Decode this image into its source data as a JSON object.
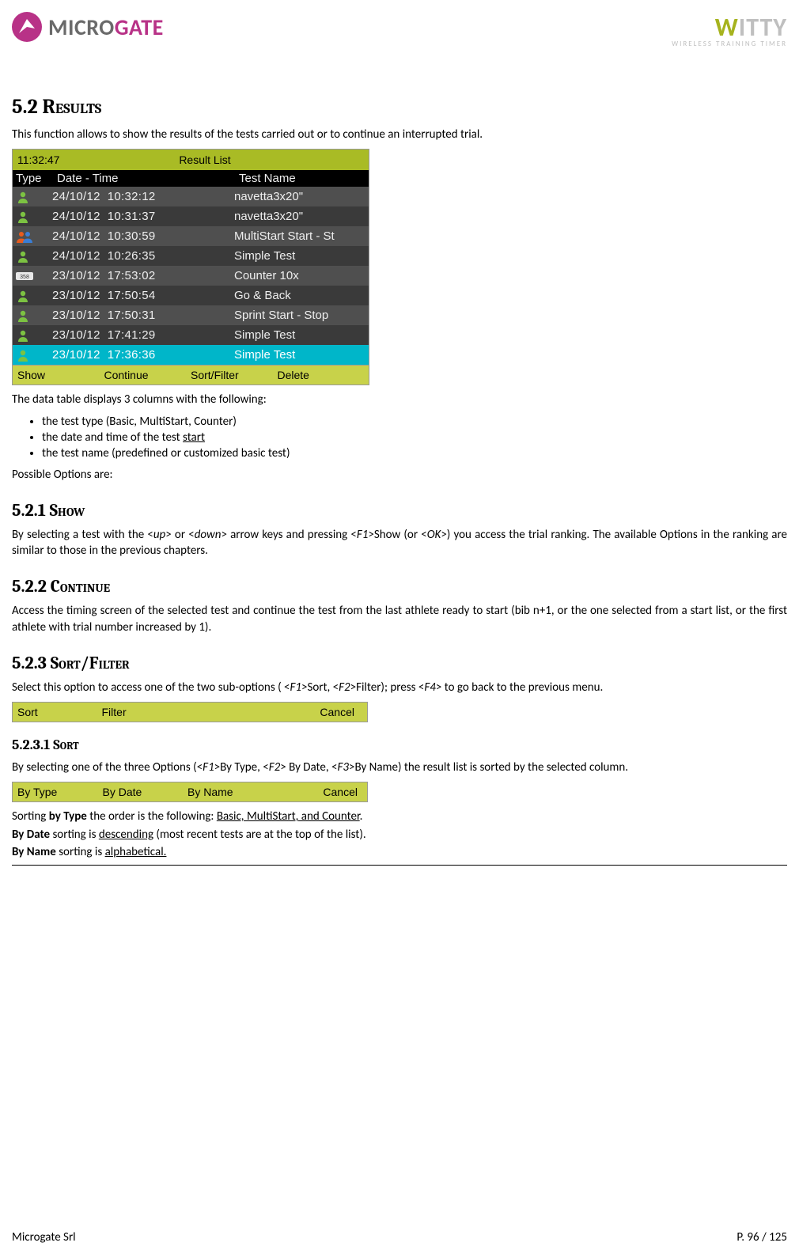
{
  "header": {
    "brand_left_a": "MICRO",
    "brand_left_b": "GATE",
    "brand_right_a": "W",
    "brand_right_b": "ITTY",
    "brand_right_sub": "WIRELESS TRAINING TIMER"
  },
  "sec52": {
    "num": "5.2 ",
    "title": "Results",
    "intro": "This function allows to show the results of the tests carried out or to continue an interrupted trial."
  },
  "device": {
    "time": "11:32:47",
    "title": "Result  List",
    "col_type": "Type",
    "col_dt": "Date - Time",
    "col_name": "Test  Name",
    "rows": [
      {
        "icon": "person",
        "dt": "24/10/12  10:32:12",
        "name": "navetta3x20\""
      },
      {
        "icon": "person",
        "dt": "24/10/12  10:31:37",
        "name": "navetta3x20\""
      },
      {
        "icon": "group",
        "dt": "24/10/12  10:30:59",
        "name": "MultiStart  Start - St"
      },
      {
        "icon": "person",
        "dt": "24/10/12  10:26:35",
        "name": "Simple  Test"
      },
      {
        "icon": "counter",
        "dt": "23/10/12  17:53:02",
        "name": "Counter  10x"
      },
      {
        "icon": "person",
        "dt": "23/10/12  17:50:54",
        "name": "Go  &  Back"
      },
      {
        "icon": "person",
        "dt": "23/10/12  17:50:31",
        "name": "Sprint  Start - Stop"
      },
      {
        "icon": "person",
        "dt": "23/10/12  17:41:29",
        "name": "Simple  Test"
      },
      {
        "icon": "person",
        "dt": "23/10/12  17:36:36",
        "name": "Simple  Test"
      }
    ],
    "footer": {
      "f1": "Show",
      "f2": "Continue",
      "f3": "Sort/Filter",
      "f4": "Delete"
    }
  },
  "aftertable": "The data table displays 3 columns with the following:",
  "bullets": [
    "the test type (Basic, MultiStart, Counter)",
    "the date and time of the test ",
    "the test name (predefined or customized basic test)"
  ],
  "bullet1_start_u": "start",
  "possible": "Possible Options are:",
  "s521": {
    "num": "5.2.1 ",
    "title": "Show",
    "p_a": "By selecting a test with the <",
    "p_up": "up",
    "p_b": "> or <",
    "p_down": "down",
    "p_c": "> arrow keys and pressing <",
    "p_f1": "F1",
    "p_d": ">Show (or <",
    "p_ok": "OK",
    "p_e": ">) you access the trial ranking. The available Options in the ranking are similar to those in the previous chapters."
  },
  "s522": {
    "num": "5.2.2 ",
    "title": "Continue",
    "p": "Access the timing screen of the selected test and continue the test from the last athlete ready to start (bib n+1, or the one selected from a start list, or  the first athlete with trial number increased by 1)."
  },
  "s523": {
    "num": "5.2.3 ",
    "title": "Sort/Filter",
    "p_a": "Select this option to access one of the two sub-options ( <",
    "p_f1": "F1",
    "p_b": ">Sort, <",
    "p_f2": "F2",
    "p_c": ">Filter); press <",
    "p_f4": "F4",
    "p_d": "> to go back to the previous menu."
  },
  "bar2": {
    "a": "Sort",
    "b": "Filter",
    "c": "Cancel"
  },
  "s5231": {
    "num": "5.2.3.1 ",
    "title": "Sort",
    "p_a": "By selecting one of the three Options (<",
    "p_f1": "F1",
    "p_b": ">By Type, <",
    "p_f2": "F2",
    "p_c": "> By Date, <",
    "p_f3": "F3",
    "p_d": ">By Name) the result list is sorted by the selected column."
  },
  "bar3": {
    "a": "By  Type",
    "b": "By  Date",
    "c": "By  Name",
    "d": "Cancel"
  },
  "sortnotes": {
    "l1a": "Sorting ",
    "l1b": "by Type",
    "l1c": " the order is the following: ",
    "l1d": "Basic, MultiStart, and Counter",
    "l1e": ".",
    "l2a": "By Date",
    "l2b": " sorting is ",
    "l2c": "descending",
    "l2d": " (most recent tests are at the top of the list).",
    "l3a": "By Name",
    "l3b": " sorting is ",
    "l3c": "alphabetical.",
    "l3d": ""
  },
  "footer": {
    "left": "Microgate Srl",
    "right": "P. 96 / 125"
  }
}
